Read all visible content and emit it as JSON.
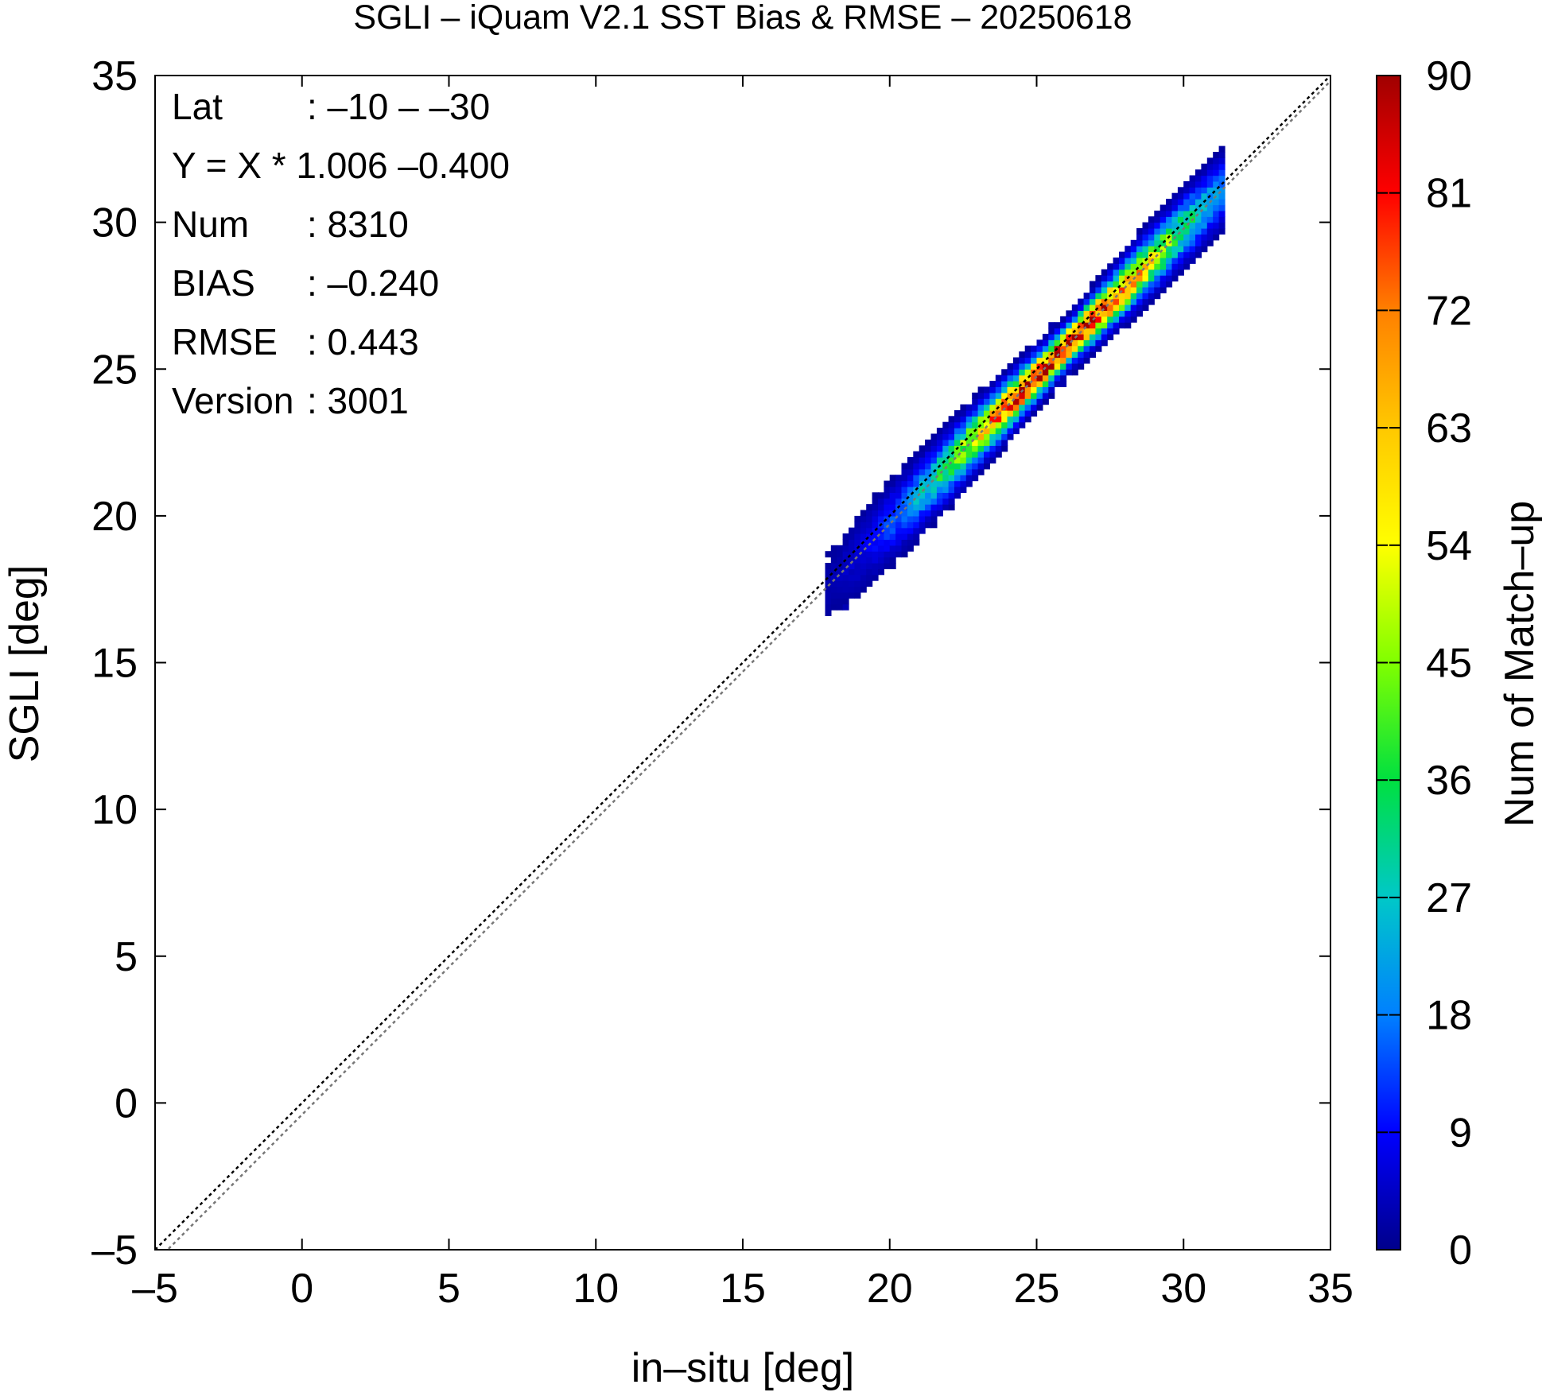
{
  "chart_data": {
    "type": "heatmap",
    "title": "SGLI – iQuam V2.1 SST Bias & RMSE  – 20250618",
    "xlabel": "in–situ [deg]",
    "ylabel": "SGLI [deg]",
    "colorbar_label": "Num of Match–up",
    "xlim": [
      -5,
      35
    ],
    "ylim": [
      -5,
      35
    ],
    "x_ticks": [
      "–5",
      "0",
      "5",
      "10",
      "15",
      "20",
      "25",
      "30",
      "35"
    ],
    "y_ticks": [
      "–5",
      "0",
      "5",
      "10",
      "15",
      "20",
      "25",
      "30",
      "35"
    ],
    "colorbar_range": [
      0,
      90
    ],
    "colorbar_ticks": [
      "0",
      "9",
      "18",
      "27",
      "36",
      "45",
      "54",
      "63",
      "72",
      "81",
      "90"
    ],
    "colormap": [
      "#00008b",
      "#0000ff",
      "#0080ff",
      "#00c8c8",
      "#00e040",
      "#80ff00",
      "#ffff00",
      "#ffc800",
      "#ff8000",
      "#ff0000",
      "#a00000"
    ],
    "grid": false,
    "stats": [
      {
        "label": "Lat",
        "value": ": –10 – –30"
      },
      {
        "label": "Y = X * 1.006 –0.400",
        "value": ""
      },
      {
        "label": "Num",
        "value": ": 8310"
      },
      {
        "label": "BIAS",
        "value": ": –0.240"
      },
      {
        "label": "RMSE",
        "value": ": 0.443"
      },
      {
        "label": "Version",
        "value": ": 3001"
      }
    ],
    "reference_lines": [
      {
        "kind": "identity",
        "slope": 1.0,
        "intercept": 0.0,
        "style": "dotted",
        "color": "#000000"
      },
      {
        "kind": "regression",
        "slope": 1.006,
        "intercept": -0.4,
        "style": "dotted",
        "color": "#777777"
      }
    ],
    "density": {
      "x_range": [
        17.8,
        31.2
      ],
      "peak": [
        25.8,
        25.6
      ],
      "max_count": 90,
      "total_count": 8310,
      "bias": -0.24,
      "rmse": 0.443
    }
  }
}
